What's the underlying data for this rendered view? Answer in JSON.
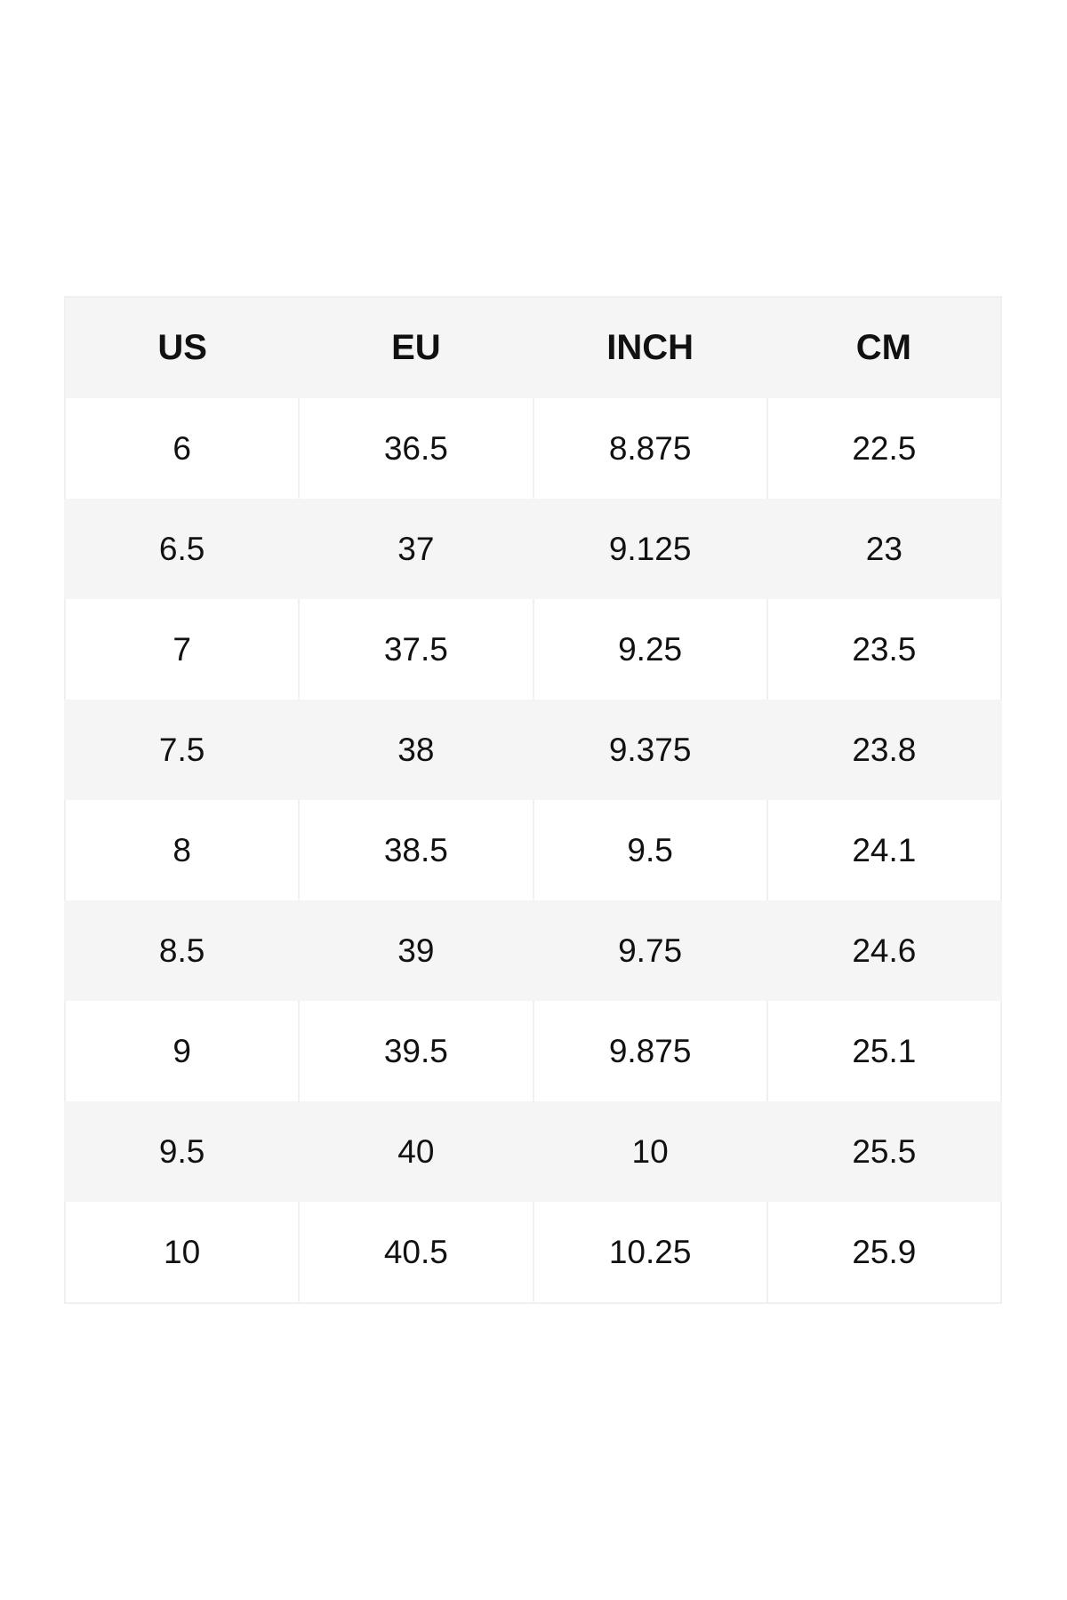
{
  "table": {
    "header": [
      "US",
      "EU",
      "INCH",
      "CM"
    ],
    "rows": [
      [
        "6",
        "36.5",
        "8.875",
        "22.5"
      ],
      [
        "6.5",
        "37",
        "9.125",
        "23"
      ],
      [
        "7",
        "37.5",
        "9.25",
        "23.5"
      ],
      [
        "7.5",
        "38",
        "9.375",
        "23.8"
      ],
      [
        "8",
        "38.5",
        "9.5",
        "24.1"
      ],
      [
        "8.5",
        "39",
        "9.75",
        "24.6"
      ],
      [
        "9",
        "39.5",
        "9.875",
        "25.1"
      ],
      [
        "9.5",
        "40",
        "10",
        "25.5"
      ],
      [
        "10",
        "40.5",
        "10.25",
        "25.9"
      ]
    ]
  }
}
